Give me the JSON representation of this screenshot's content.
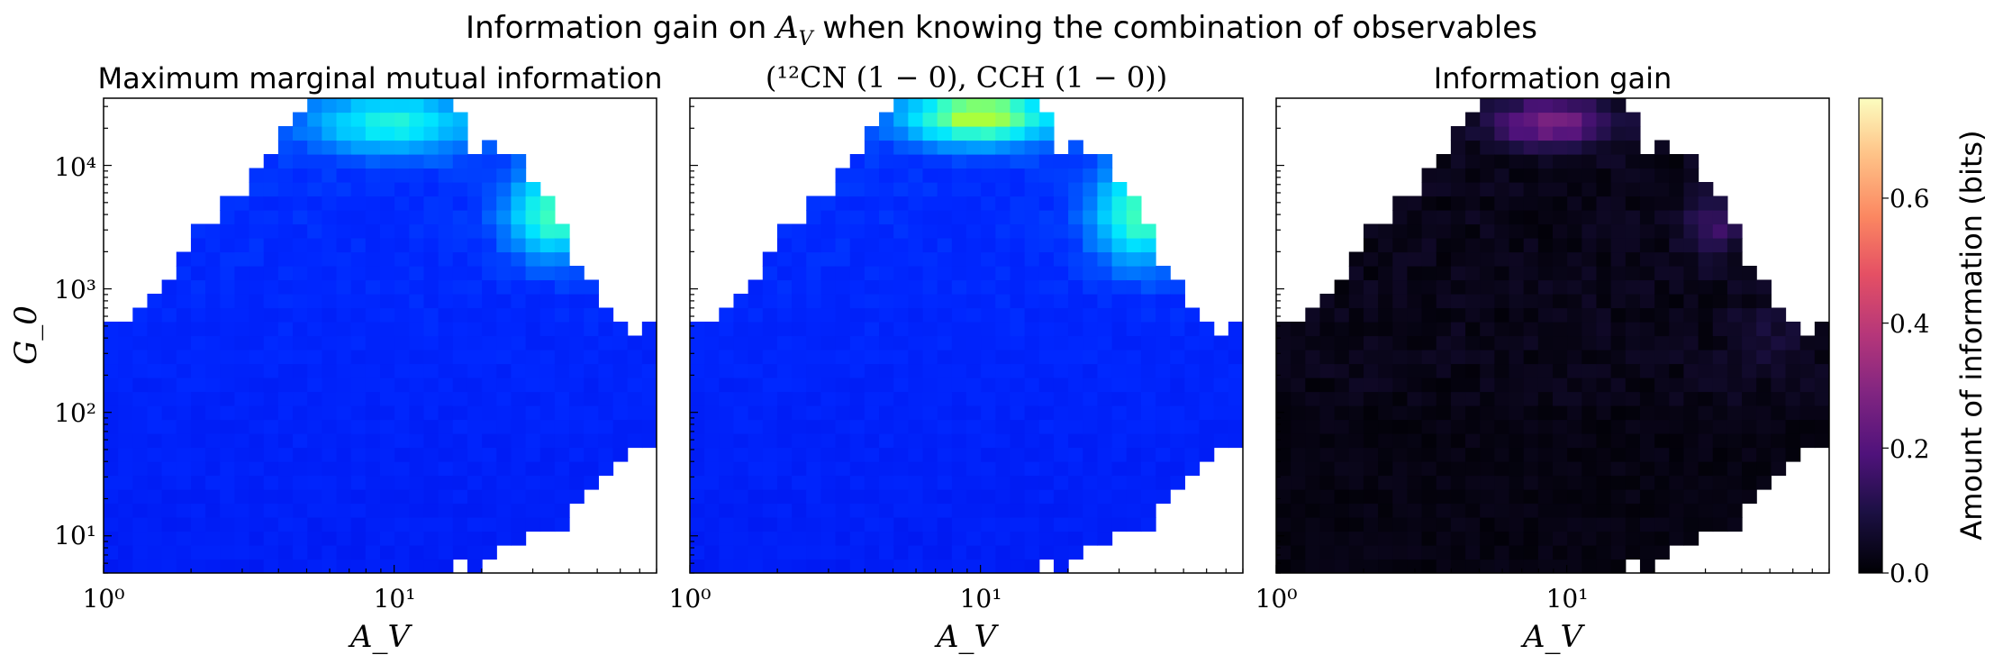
{
  "suptitle": {
    "line1_prefix": "Information gain on ",
    "line1_var": "A",
    "line1_var_sub": "V",
    "line1_suffix": " when knowing the combination of observables",
    "line2": "(¹²CN (1 − 0), CCH (1 − 0))"
  },
  "chart_data": [
    {
      "type": "heatmap",
      "title": "Maximum marginal mutual information",
      "xlabel": "A_V",
      "ylabel": "G_0",
      "xscale": "log",
      "yscale": "log",
      "xlim": [
        1,
        80
      ],
      "ylim": [
        5,
        35000
      ],
      "xticks": [
        "10⁰",
        "10¹"
      ],
      "yticks": [
        "10¹",
        "10²",
        "10³",
        "10⁴"
      ],
      "colormap": "jet-like (blue → cyan → green)",
      "features": [
        {
          "region": "A_V 7–15, G_0 ~2×10⁴",
          "level": "cyan"
        },
        {
          "region": "A_V 25–50, G_0 3×10³–8×10³",
          "level": "cyan-green"
        },
        {
          "region": "rest",
          "level": "blue"
        }
      ]
    },
    {
      "type": "heatmap",
      "title": "",
      "xlabel": "A_V",
      "xscale": "log",
      "yscale": "log",
      "xlim": [
        1,
        80
      ],
      "ylim": [
        5,
        35000
      ],
      "xticks": [
        "10⁰",
        "10¹"
      ],
      "colormap": "jet-like (blue → cyan → green)",
      "features": [
        {
          "region": "A_V 7–15, G_0 ~2×10⁴",
          "level": "green"
        },
        {
          "region": "A_V 25–50, G_0 2×10³–10⁴",
          "level": "cyan-green"
        },
        {
          "region": "rest",
          "level": "blue"
        }
      ]
    },
    {
      "type": "heatmap",
      "title": "Information gain",
      "xlabel": "A_V",
      "xscale": "log",
      "yscale": "log",
      "xlim": [
        1,
        80
      ],
      "ylim": [
        5,
        35000
      ],
      "xticks": [
        "10⁰",
        "10¹"
      ],
      "colormap": "magma",
      "colorbar": {
        "label": "Amount of information (bits)",
        "ticks": [
          "0.0",
          "0.2",
          "0.4",
          "0.6"
        ],
        "range": [
          0,
          0.76
        ]
      },
      "features": [
        {
          "region": "A_V 6–15, G_0 ~2×10⁴",
          "level": 0.25
        },
        {
          "region": "A_V 25–40, G_0 ~3×10³",
          "level": 0.15
        },
        {
          "region": "rest",
          "level": 0.03
        }
      ]
    }
  ],
  "colors": {
    "jet_low": "#0000cc",
    "jet_mid": "#00e0ff",
    "jet_high": "#a0ff40",
    "magma_low": "#000004",
    "magma_high": "#fcfdbf"
  }
}
